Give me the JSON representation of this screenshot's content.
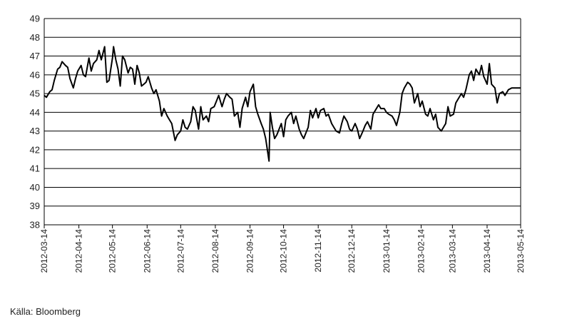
{
  "chart_data": {
    "type": "line",
    "title": "",
    "xlabel": "",
    "ylabel": "",
    "ylim": [
      38,
      49
    ],
    "y_ticks": [
      49,
      48,
      47,
      46,
      45,
      44,
      43,
      42,
      41,
      40,
      39,
      38
    ],
    "x_ticks": [
      "2012-03-14",
      "2012-04-14",
      "2012-05-14",
      "2012-06-14",
      "2012-07-14",
      "2012-08-14",
      "2012-09-14",
      "2012-10-14",
      "2012-11-14",
      "2012-12-14",
      "2013-01-14",
      "2013-02-14",
      "2013-03-14",
      "2013-04-14",
      "2013-05-14"
    ],
    "xlim": [
      "2012-03-14",
      "2013-05-14"
    ],
    "grid": true,
    "line_color": "#000000",
    "series": [
      {
        "points": [
          [
            "2012-03-14",
            44.9
          ],
          [
            "2012-03-16",
            44.8
          ],
          [
            "2012-03-19",
            45.1
          ],
          [
            "2012-03-21",
            45.2
          ],
          [
            "2012-03-23",
            45.7
          ],
          [
            "2012-03-26",
            46.3
          ],
          [
            "2012-03-28",
            46.4
          ],
          [
            "2012-03-30",
            46.7
          ],
          [
            "2012-04-02",
            46.5
          ],
          [
            "2012-04-04",
            46.4
          ],
          [
            "2012-04-06",
            45.8
          ],
          [
            "2012-04-09",
            45.3
          ],
          [
            "2012-04-11",
            45.8
          ],
          [
            "2012-04-13",
            46.2
          ],
          [
            "2012-04-16",
            46.5
          ],
          [
            "2012-04-18",
            46.0
          ],
          [
            "2012-04-20",
            45.9
          ],
          [
            "2012-04-23",
            46.9
          ],
          [
            "2012-04-25",
            46.2
          ],
          [
            "2012-04-27",
            46.6
          ],
          [
            "2012-04-30",
            46.8
          ],
          [
            "2012-05-02",
            47.3
          ],
          [
            "2012-05-04",
            46.8
          ],
          [
            "2012-05-07",
            47.5
          ],
          [
            "2012-05-09",
            45.6
          ],
          [
            "2012-05-11",
            45.7
          ],
          [
            "2012-05-14",
            46.9
          ],
          [
            "2012-05-15",
            47.5
          ],
          [
            "2012-05-17",
            46.8
          ],
          [
            "2012-05-19",
            46.3
          ],
          [
            "2012-05-21",
            45.4
          ],
          [
            "2012-05-23",
            47.0
          ],
          [
            "2012-05-25",
            46.8
          ],
          [
            "2012-05-28",
            46.1
          ],
          [
            "2012-05-30",
            46.4
          ],
          [
            "2012-06-01",
            46.3
          ],
          [
            "2012-06-03",
            45.5
          ],
          [
            "2012-06-05",
            46.5
          ],
          [
            "2012-06-07",
            46.1
          ],
          [
            "2012-06-09",
            45.4
          ],
          [
            "2012-06-11",
            45.5
          ],
          [
            "2012-06-13",
            45.6
          ],
          [
            "2012-06-15",
            45.9
          ],
          [
            "2012-06-18",
            45.3
          ],
          [
            "2012-06-20",
            45.0
          ],
          [
            "2012-06-22",
            45.2
          ],
          [
            "2012-06-25",
            44.6
          ],
          [
            "2012-06-27",
            43.8
          ],
          [
            "2012-06-29",
            44.2
          ],
          [
            "2012-07-02",
            43.8
          ],
          [
            "2012-07-04",
            43.6
          ],
          [
            "2012-07-06",
            43.4
          ],
          [
            "2012-07-09",
            42.5
          ],
          [
            "2012-07-11",
            42.8
          ],
          [
            "2012-07-14",
            43.0
          ],
          [
            "2012-07-16",
            43.6
          ],
          [
            "2012-07-18",
            43.2
          ],
          [
            "2012-07-20",
            43.1
          ],
          [
            "2012-07-23",
            43.5
          ],
          [
            "2012-07-25",
            44.3
          ],
          [
            "2012-07-27",
            44.1
          ],
          [
            "2012-07-30",
            43.1
          ],
          [
            "2012-08-01",
            44.3
          ],
          [
            "2012-08-03",
            43.6
          ],
          [
            "2012-08-06",
            43.8
          ],
          [
            "2012-08-08",
            43.5
          ],
          [
            "2012-08-10",
            44.2
          ],
          [
            "2012-08-13",
            44.3
          ],
          [
            "2012-08-15",
            44.6
          ],
          [
            "2012-08-17",
            44.9
          ],
          [
            "2012-08-20",
            44.3
          ],
          [
            "2012-08-22",
            44.7
          ],
          [
            "2012-08-24",
            45.0
          ],
          [
            "2012-08-27",
            44.8
          ],
          [
            "2012-08-29",
            44.7
          ],
          [
            "2012-08-31",
            43.8
          ],
          [
            "2012-09-03",
            44.0
          ],
          [
            "2012-09-05",
            43.2
          ],
          [
            "2012-09-07",
            44.2
          ],
          [
            "2012-09-10",
            44.8
          ],
          [
            "2012-09-12",
            44.3
          ],
          [
            "2012-09-14",
            45.1
          ],
          [
            "2012-09-17",
            45.5
          ],
          [
            "2012-09-19",
            44.3
          ],
          [
            "2012-09-21",
            43.9
          ],
          [
            "2012-09-24",
            43.4
          ],
          [
            "2012-09-26",
            43.1
          ],
          [
            "2012-09-28",
            42.6
          ],
          [
            "2012-10-01",
            41.4
          ],
          [
            "2012-10-02",
            44.0
          ],
          [
            "2012-10-04",
            43.2
          ],
          [
            "2012-10-06",
            42.6
          ],
          [
            "2012-10-08",
            42.8
          ],
          [
            "2012-10-10",
            43.1
          ],
          [
            "2012-10-12",
            43.4
          ],
          [
            "2012-10-14",
            42.7
          ],
          [
            "2012-10-16",
            43.6
          ],
          [
            "2012-10-18",
            43.8
          ],
          [
            "2012-10-21",
            44.0
          ],
          [
            "2012-10-23",
            43.4
          ],
          [
            "2012-10-25",
            43.8
          ],
          [
            "2012-10-28",
            43.1
          ],
          [
            "2012-10-30",
            42.8
          ],
          [
            "2012-11-01",
            42.6
          ],
          [
            "2012-11-03",
            42.9
          ],
          [
            "2012-11-05",
            43.2
          ],
          [
            "2012-11-07",
            44.1
          ],
          [
            "2012-11-09",
            43.7
          ],
          [
            "2012-11-12",
            44.2
          ],
          [
            "2012-11-14",
            43.7
          ],
          [
            "2012-11-16",
            44.1
          ],
          [
            "2012-11-19",
            44.2
          ],
          [
            "2012-11-21",
            43.8
          ],
          [
            "2012-11-23",
            43.9
          ],
          [
            "2012-11-26",
            43.4
          ],
          [
            "2012-11-28",
            43.2
          ],
          [
            "2012-11-30",
            43.0
          ],
          [
            "2012-12-03",
            42.9
          ],
          [
            "2012-12-05",
            43.4
          ],
          [
            "2012-12-07",
            43.8
          ],
          [
            "2012-12-10",
            43.5
          ],
          [
            "2012-12-12",
            43.1
          ],
          [
            "2012-12-14",
            43.0
          ],
          [
            "2012-12-17",
            43.4
          ],
          [
            "2012-12-19",
            43.1
          ],
          [
            "2012-12-21",
            42.6
          ],
          [
            "2012-12-24",
            43.0
          ],
          [
            "2012-12-26",
            43.3
          ],
          [
            "2012-12-28",
            43.5
          ],
          [
            "2012-12-31",
            43.1
          ],
          [
            "2013-01-02",
            43.9
          ],
          [
            "2013-01-04",
            44.1
          ],
          [
            "2013-01-07",
            44.4
          ],
          [
            "2013-01-09",
            44.2
          ],
          [
            "2013-01-12",
            44.2
          ],
          [
            "2013-01-14",
            44.0
          ],
          [
            "2013-01-16",
            43.9
          ],
          [
            "2013-01-19",
            43.8
          ],
          [
            "2013-01-21",
            43.6
          ],
          [
            "2013-01-23",
            43.3
          ],
          [
            "2013-01-26",
            44.0
          ],
          [
            "2013-01-28",
            45.0
          ],
          [
            "2013-01-30",
            45.3
          ],
          [
            "2013-02-02",
            45.6
          ],
          [
            "2013-02-04",
            45.5
          ],
          [
            "2013-02-06",
            45.3
          ],
          [
            "2013-02-08",
            44.5
          ],
          [
            "2013-02-11",
            45.0
          ],
          [
            "2013-02-13",
            44.3
          ],
          [
            "2013-02-15",
            44.6
          ],
          [
            "2013-02-18",
            43.9
          ],
          [
            "2013-02-20",
            43.8
          ],
          [
            "2013-02-22",
            44.2
          ],
          [
            "2013-02-25",
            43.6
          ],
          [
            "2013-02-27",
            43.9
          ],
          [
            "2013-03-01",
            43.2
          ],
          [
            "2013-03-04",
            43.0
          ],
          [
            "2013-03-06",
            43.2
          ],
          [
            "2013-03-08",
            43.4
          ],
          [
            "2013-03-10",
            44.3
          ],
          [
            "2013-03-12",
            43.8
          ],
          [
            "2013-03-15",
            43.9
          ],
          [
            "2013-03-17",
            44.5
          ],
          [
            "2013-03-19",
            44.7
          ],
          [
            "2013-03-22",
            45.0
          ],
          [
            "2013-03-24",
            44.8
          ],
          [
            "2013-03-26",
            45.2
          ],
          [
            "2013-03-29",
            46.0
          ],
          [
            "2013-03-31",
            46.2
          ],
          [
            "2013-04-02",
            45.7
          ],
          [
            "2013-04-04",
            46.3
          ],
          [
            "2013-04-07",
            46.0
          ],
          [
            "2013-04-09",
            46.5
          ],
          [
            "2013-04-11",
            45.9
          ],
          [
            "2013-04-14",
            45.5
          ],
          [
            "2013-04-16",
            46.6
          ],
          [
            "2013-04-18",
            45.5
          ],
          [
            "2013-04-21",
            45.3
          ],
          [
            "2013-04-23",
            44.5
          ],
          [
            "2013-04-25",
            45.0
          ],
          [
            "2013-04-28",
            45.1
          ],
          [
            "2013-04-30",
            44.9
          ],
          [
            "2013-05-03",
            45.2
          ],
          [
            "2013-05-06",
            45.3
          ],
          [
            "2013-05-14",
            45.3
          ]
        ]
      }
    ]
  },
  "source": "Källa: Bloomberg"
}
